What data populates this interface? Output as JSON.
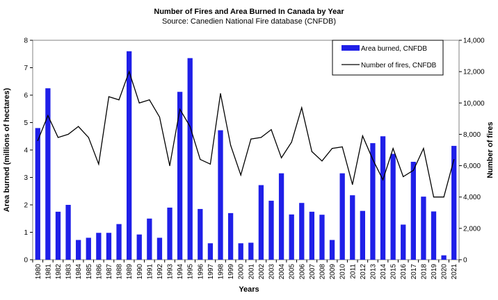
{
  "chart_data": {
    "type": "bar",
    "title": "Number of Fires and Area Burned In Canada by Year",
    "subtitle": "Source: Canedien National Fire database (CNFDB)",
    "xlabel": "Years",
    "ylabel_left": "Area burned (millions of hectares)",
    "ylabel_right": "Number of fires",
    "ylim_left": [
      0,
      8
    ],
    "ylim_right": [
      0,
      14000
    ],
    "yticks_left": [
      "0",
      "1",
      "2",
      "3",
      "4",
      "5",
      "6",
      "7",
      "8"
    ],
    "yticks_right": [
      "0",
      "2,000",
      "4,000",
      "6,000",
      "8,000",
      "10,000",
      "12,000",
      "14,000"
    ],
    "legend_position": "top-right",
    "categories": [
      "1980",
      "1981",
      "1982",
      "1983",
      "1984",
      "1985",
      "1986",
      "1987",
      "1988",
      "1989",
      "1990",
      "1991",
      "1992",
      "1993",
      "1994",
      "1995",
      "1996",
      "1997",
      "1998",
      "1999",
      "2000",
      "2001",
      "2002",
      "2003",
      "2004",
      "2005",
      "2006",
      "2007",
      "2008",
      "2009",
      "2010",
      "2011",
      "2012",
      "2013",
      "2014",
      "2015",
      "2016",
      "2017",
      "2018",
      "2019",
      "2020",
      "2021"
    ],
    "series": [
      {
        "name": "Area burned, CNFDB",
        "type": "bar",
        "axis": "left",
        "color": "#1f1fe8",
        "values": [
          4.8,
          6.25,
          1.75,
          2.0,
          0.72,
          0.8,
          0.98,
          0.98,
          1.3,
          7.6,
          0.92,
          1.5,
          0.8,
          1.9,
          6.12,
          7.35,
          1.85,
          0.6,
          4.72,
          1.7,
          0.6,
          0.62,
          2.72,
          2.15,
          3.15,
          1.65,
          2.07,
          1.75,
          1.64,
          0.72,
          3.15,
          2.35,
          1.78,
          4.25,
          4.5,
          3.86,
          1.28,
          3.57,
          2.3,
          1.76,
          0.16,
          4.15
        ]
      },
      {
        "name": "Number of fires, CNFDB",
        "type": "line",
        "axis": "right",
        "color": "#000000",
        "values": [
          7600,
          9200,
          7800,
          8000,
          8500,
          7800,
          6100,
          10400,
          10200,
          12000,
          10000,
          10200,
          9100,
          6000,
          9600,
          8500,
          6400,
          6100,
          10600,
          7300,
          5400,
          7700,
          7800,
          8300,
          6500,
          7500,
          9700,
          6900,
          6300,
          7100,
          7200,
          4800,
          7900,
          6400,
          5100,
          7100,
          5300,
          5700,
          7100,
          4000,
          4000,
          6400
        ]
      }
    ]
  },
  "legend": {
    "bar_label": "Area burned, CNFDB",
    "line_label": "Number of fires, CNFDB"
  }
}
